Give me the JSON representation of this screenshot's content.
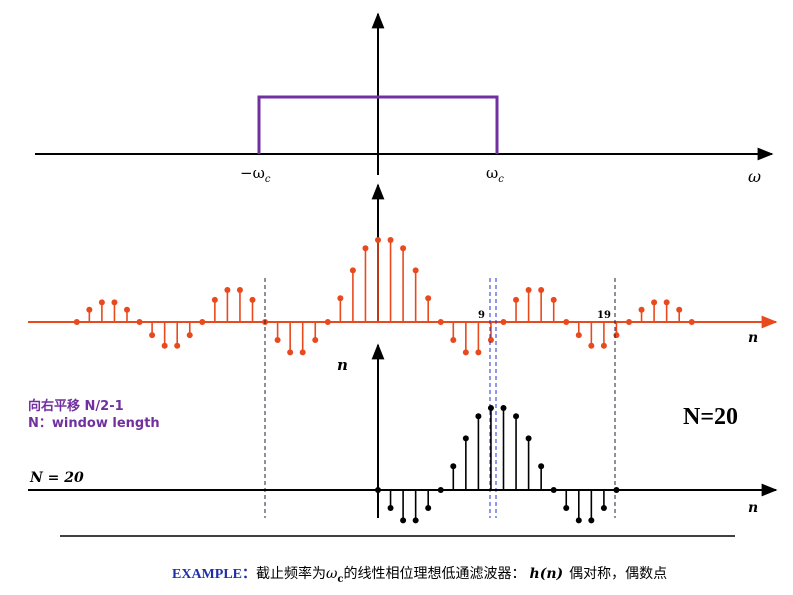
{
  "ideal_response": {
    "neg_cutoff_label": "−ω",
    "cutoff_label": "ω",
    "cutoff_subscript": "c",
    "axis_label": "ω"
  },
  "shifted_sinc": {
    "n": [
      -24,
      -23,
      -22,
      -21,
      -20,
      -19,
      -18,
      -17,
      -16,
      -15,
      -14,
      -13,
      -12,
      -11,
      -10,
      -9,
      -8,
      -7,
      -6,
      -5,
      -4,
      -3,
      -2,
      -1,
      0,
      1,
      2,
      3,
      4,
      5,
      6,
      7,
      8,
      9,
      10,
      11,
      12,
      13,
      14,
      15,
      16,
      17,
      18,
      19,
      20,
      21,
      22,
      23,
      24,
      25
    ],
    "values": [
      0,
      0.15,
      0.24,
      0.24,
      0.15,
      0,
      -0.16,
      -0.29,
      -0.29,
      -0.16,
      0,
      0.27,
      0.39,
      0.39,
      0.27,
      0,
      -0.22,
      -0.37,
      -0.37,
      -0.22,
      0,
      0.29,
      0.63,
      0.9,
      1,
      1,
      0.9,
      0.63,
      0.29,
      0,
      -0.22,
      -0.37,
      -0.37,
      -0.22,
      0,
      0.27,
      0.39,
      0.39,
      0.27,
      0,
      -0.16,
      -0.29,
      -0.29,
      -0.16,
      0,
      0.15,
      0.24,
      0.24,
      0.15,
      0
    ],
    "markers": [
      "9",
      "19"
    ],
    "axis_label": "n"
  },
  "window": {
    "axis_label": "n",
    "length_label": "N = 20",
    "values": [
      0,
      -0.22,
      -0.37,
      -0.37,
      -0.22,
      0,
      0.29,
      0.63,
      0.9,
      1,
      1,
      0.9,
      0.63,
      0.29,
      0,
      -0.22,
      -0.37,
      -0.37,
      -0.22,
      0
    ]
  },
  "notes": {
    "shift": "向右平移 N/2-1",
    "window": "N：window length",
    "big_n": "N=20"
  },
  "caption": {
    "example": "EXAMPLE：",
    "text1": "截止频率为",
    "omega": "ω",
    "subscript": "c",
    "text2": "的线性相位理想低通滤波器：",
    "h": "h(n)",
    "text3": "偶对称，偶数点"
  }
}
